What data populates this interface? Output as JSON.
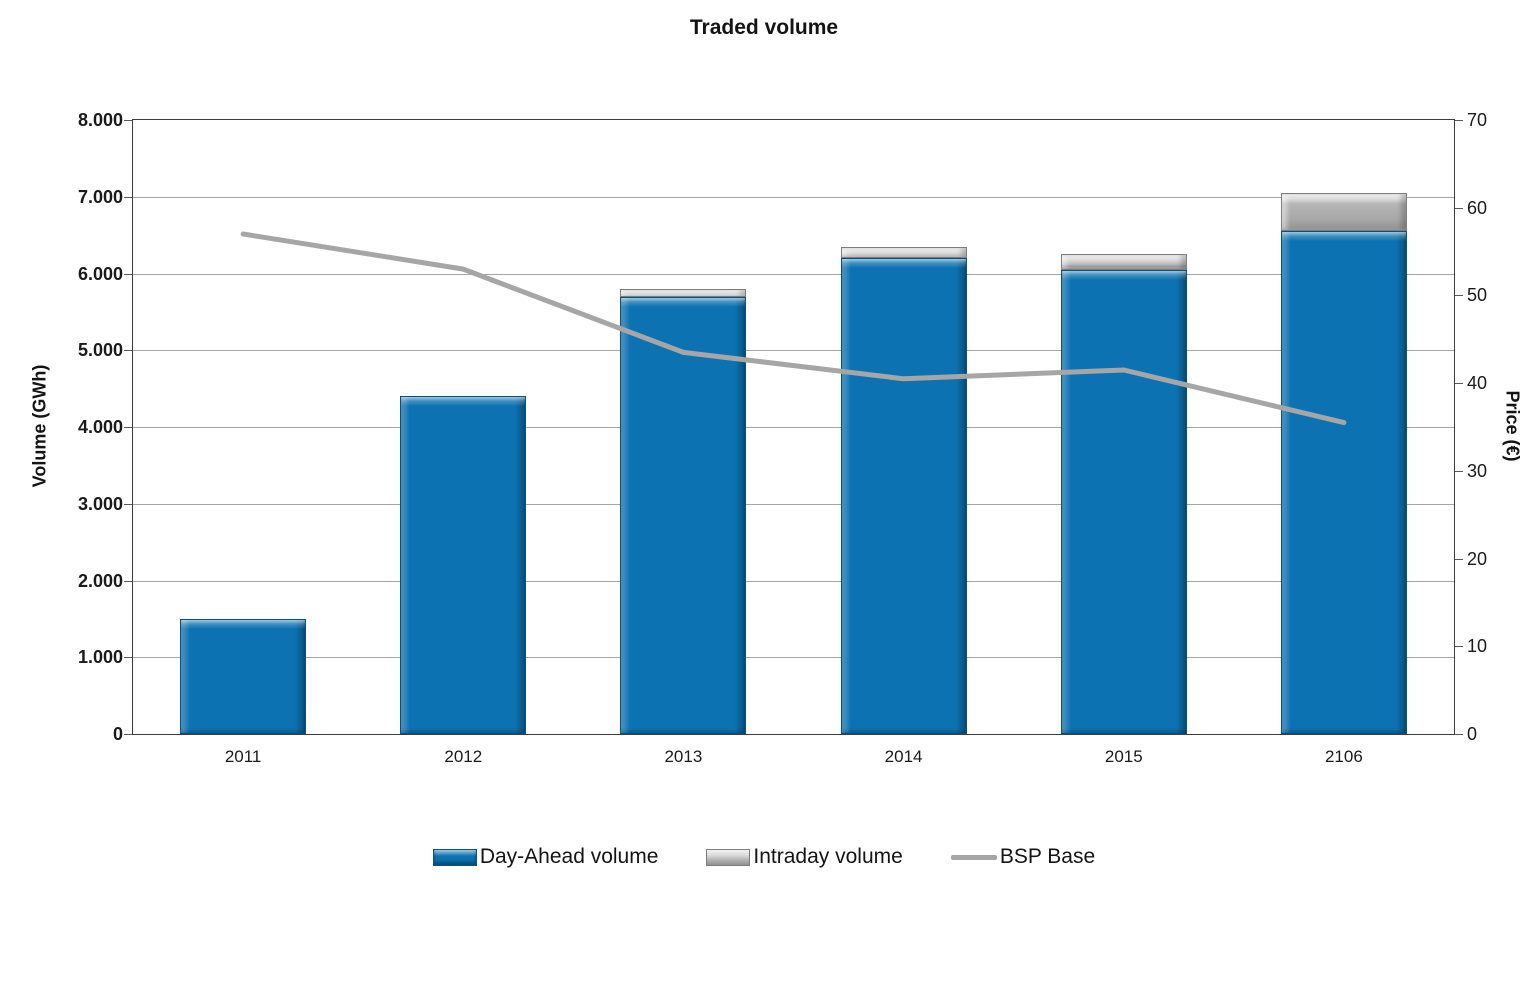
{
  "chart_data": {
    "type": "combo-stacked-bar-line",
    "title": "Traded volume",
    "categories": [
      "2011",
      "2012",
      "2013",
      "2014",
      "2015",
      "2106"
    ],
    "series": [
      {
        "name": "Day-Ahead volume",
        "type": "bar",
        "axis": "left",
        "color": "#0d72b1",
        "values": [
          1500,
          4400,
          5700,
          6200,
          6050,
          6550
        ]
      },
      {
        "name": "Intraday volume",
        "type": "bar",
        "axis": "left",
        "color": "#ababab",
        "values": [
          0,
          0,
          100,
          150,
          200,
          500
        ]
      },
      {
        "name": "BSP Base",
        "type": "line",
        "axis": "right",
        "color": "#a6a6a6",
        "values": [
          57,
          53,
          43.5,
          40.5,
          41.5,
          35.5
        ]
      }
    ],
    "ylabel_left": "Volume (GWh)",
    "ylabel_right": "Price (€)",
    "y_left_axis": {
      "min": 0,
      "max": 8000,
      "tick_step": 1000,
      "tick_labels": [
        "0",
        "1.000",
        "2.000",
        "3.000",
        "4.000",
        "5.000",
        "6.000",
        "7.000",
        "8.000"
      ]
    },
    "y_right_axis": {
      "min": 0,
      "max": 70,
      "tick_step": 10,
      "tick_labels": [
        "0",
        "10",
        "20",
        "30",
        "40",
        "50",
        "60",
        "70"
      ]
    },
    "xlabel": "",
    "grid": "horizontal",
    "legend_position": "bottom",
    "style_colors": {
      "grid": "#a6a6a6",
      "frame": "#3c3c3c",
      "tick": "#595959",
      "line_stroke": "#a6a6a6"
    }
  }
}
